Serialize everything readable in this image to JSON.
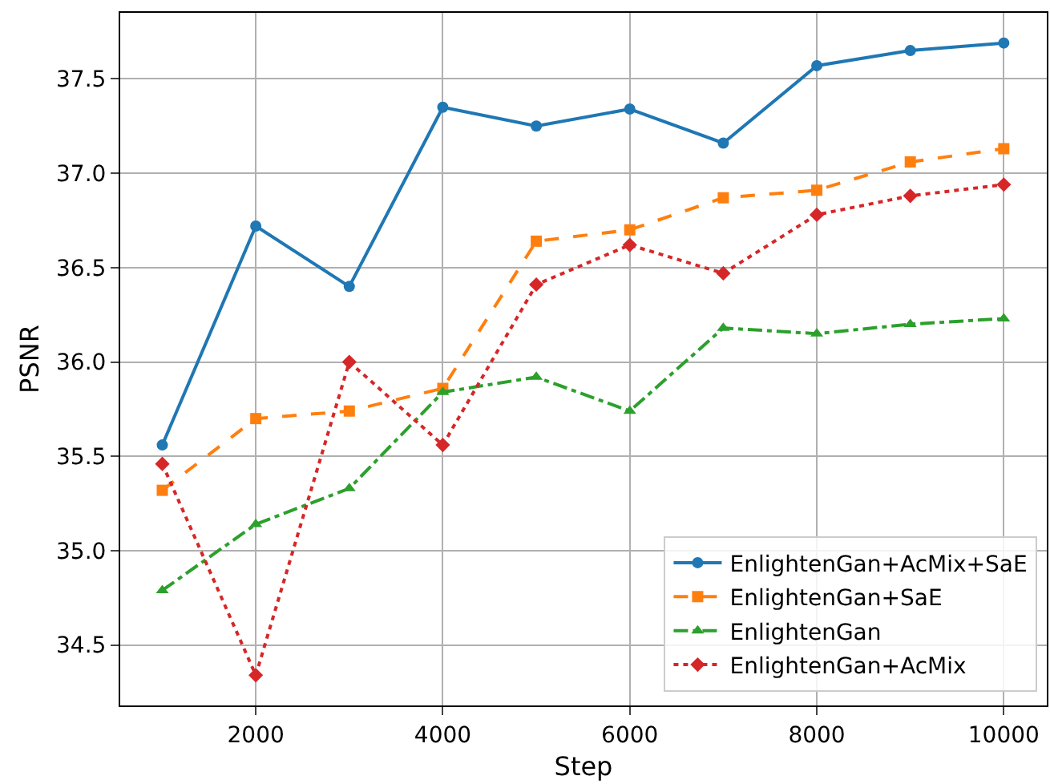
{
  "chart_data": {
    "type": "line",
    "xlabel": "Step",
    "ylabel": "PSNR",
    "x": [
      1000,
      2000,
      3000,
      4000,
      5000,
      6000,
      7000,
      8000,
      9000,
      10000
    ],
    "series": [
      {
        "name": "EnlightenGan+AcMix+SaE",
        "color": "#1f77b4",
        "marker": "circle",
        "line_style": "solid",
        "values": [
          35.56,
          36.72,
          36.4,
          37.35,
          37.25,
          37.34,
          37.16,
          37.57,
          37.65,
          37.69
        ]
      },
      {
        "name": "EnlightenGan+SaE",
        "color": "#ff7f0e",
        "marker": "square",
        "line_style": "dashed",
        "values": [
          35.32,
          35.7,
          35.74,
          35.86,
          36.64,
          36.7,
          36.87,
          36.91,
          37.06,
          37.13
        ]
      },
      {
        "name": "EnlightenGan",
        "color": "#2ca02c",
        "marker": "triangle",
        "line_style": "dashdot",
        "values": [
          34.79,
          35.14,
          35.33,
          35.84,
          35.92,
          35.74,
          36.18,
          36.15,
          36.2,
          36.23
        ]
      },
      {
        "name": "EnlightenGan+AcMix",
        "color": "#d62728",
        "marker": "diamond",
        "line_style": "dotted",
        "values": [
          35.46,
          34.34,
          36.0,
          35.56,
          36.41,
          36.62,
          36.47,
          36.78,
          36.88,
          36.94
        ]
      }
    ],
    "xlim": [
      550,
      10460
    ],
    "xticks": [
      2000,
      4000,
      6000,
      8000,
      10000
    ],
    "ylim": [
      34.18,
      37.85
    ],
    "yticks": [
      {
        "value": 34.5,
        "label": "34.5"
      },
      {
        "value": 35,
        "label": "35.0"
      },
      {
        "value": 35.5,
        "label": "35.5"
      },
      {
        "value": 36,
        "label": "36.0"
      },
      {
        "value": 36.5,
        "label": "36.5"
      },
      {
        "value": 37,
        "label": "37.0"
      },
      {
        "value": 37.5,
        "label": "37.5"
      }
    ],
    "grid": true,
    "legend": "bottom right"
  }
}
